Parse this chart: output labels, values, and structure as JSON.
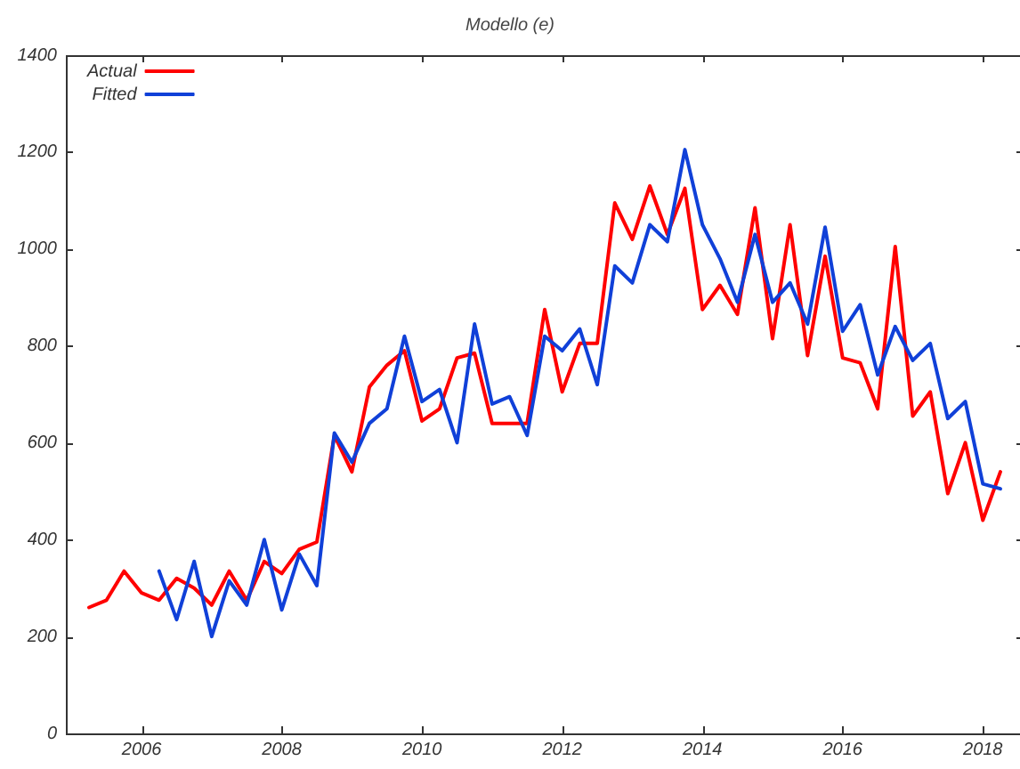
{
  "chart_data": {
    "type": "line",
    "title": "Modello (e)",
    "x": [
      2005.25,
      2005.5,
      2005.75,
      2006,
      2006.25,
      2006.5,
      2006.75,
      2007,
      2007.25,
      2007.5,
      2007.75,
      2008,
      2008.25,
      2008.5,
      2008.75,
      2009,
      2009.25,
      2009.5,
      2009.75,
      2010,
      2010.25,
      2010.5,
      2010.75,
      2011,
      2011.25,
      2011.5,
      2011.75,
      2012,
      2012.25,
      2012.5,
      2012.75,
      2013,
      2013.25,
      2013.5,
      2013.75,
      2014,
      2014.25,
      2014.5,
      2014.75,
      2015,
      2015.25,
      2015.5,
      2015.75,
      2016,
      2016.25,
      2016.5,
      2016.75,
      2017,
      2017.25,
      2017.5,
      2017.75,
      2018,
      2018.25
    ],
    "series": [
      {
        "name": "Actual",
        "color": "#ff0000",
        "values": [
          260,
          275,
          335,
          290,
          275,
          320,
          300,
          265,
          335,
          275,
          355,
          330,
          380,
          395,
          615,
          540,
          715,
          760,
          790,
          645,
          670,
          775,
          785,
          640,
          640,
          640,
          875,
          705,
          805,
          805,
          1095,
          1020,
          1130,
          1030,
          1125,
          875,
          925,
          865,
          1085,
          815,
          1050,
          780,
          985,
          775,
          765,
          670,
          1005,
          655,
          705,
          495,
          600,
          440,
          540
        ]
      },
      {
        "name": "Fitted",
        "color": "#1040d8",
        "values": [
          null,
          null,
          null,
          null,
          335,
          235,
          355,
          200,
          315,
          265,
          400,
          255,
          370,
          305,
          620,
          560,
          640,
          670,
          820,
          685,
          710,
          600,
          845,
          680,
          695,
          615,
          820,
          790,
          835,
          720,
          965,
          930,
          1050,
          1015,
          1205,
          1050,
          980,
          890,
          1030,
          890,
          930,
          845,
          1045,
          830,
          885,
          740,
          840,
          770,
          805,
          650,
          685,
          515,
          505
        ]
      }
    ],
    "xlim": [
      2004.92,
      2018.53
    ],
    "xticks": [
      2006,
      2008,
      2010,
      2012,
      2014,
      2016,
      2018
    ],
    "ylim": [
      0,
      1400
    ],
    "yticks": [
      0,
      200,
      400,
      600,
      800,
      1000,
      1200,
      1400
    ],
    "legend": "top left",
    "line_style": "solid"
  }
}
